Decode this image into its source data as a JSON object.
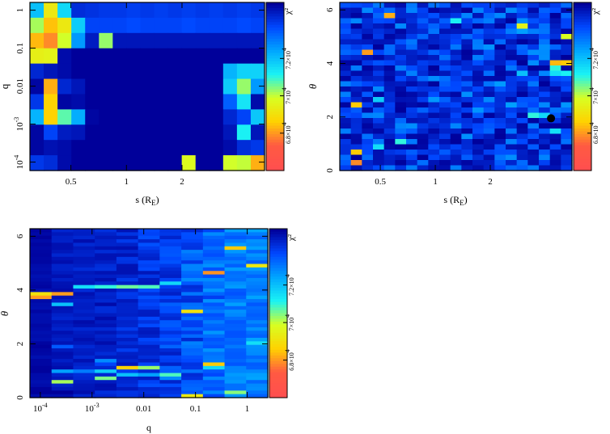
{
  "colors": {
    "background": "#ffffff",
    "axis": "#000000",
    "marker": "#000000",
    "colormap": [
      "#ff4f4f",
      "#ff5a42",
      "#ffd200",
      "#d8ff22",
      "#1bf4f4",
      "#00a6ff",
      "#0048ff",
      "#00009a"
    ]
  },
  "chart_data": [
    {
      "id": "s-q",
      "type": "heatmap",
      "title": "",
      "xlabel": "s (R_E)",
      "ylabel": "q",
      "x_scale": "log",
      "y_scale": "log",
      "xlim": [
        0.3,
        5.6
      ],
      "ylim": [
        6e-05,
        1.6
      ],
      "x_ticks": [
        {
          "value": 0.5,
          "label": "0.5"
        },
        {
          "value": 1,
          "label": "1"
        },
        {
          "value": 2,
          "label": "2"
        }
      ],
      "y_ticks": [
        {
          "value": 1,
          "label": "1"
        },
        {
          "value": 0.1,
          "label": "0.1"
        },
        {
          "value": 0.01,
          "label": "0.01"
        },
        {
          "value": 0.001,
          "label": "10^-3"
        },
        {
          "value": 0.0001,
          "label": "10^-4"
        }
      ],
      "colorbar": {
        "label": "χ²",
        "range": [
          66000,
          75000
        ],
        "ticks": [
          {
            "value": 68000,
            "label": "6.8×10^4"
          },
          {
            "value": 70000,
            "label": "7×10^4"
          },
          {
            "value": 72000,
            "label": "7.2×10^4"
          }
        ]
      },
      "grid": {
        "cols": 17,
        "rows": 11,
        "note": "chi-square values; row 0 = top (q ~ 1)",
        "values": [
          [
            72000,
            69200,
            71600,
            74200,
            74100,
            74000,
            74000,
            73900,
            74000,
            73900,
            74000,
            73900,
            74000,
            73900,
            74000,
            73900,
            74000
          ],
          [
            70200,
            68400,
            69200,
            71800,
            73800,
            73800,
            73800,
            73700,
            73800,
            73800,
            73800,
            73700,
            73800,
            73800,
            73800,
            73700,
            73800
          ],
          [
            68300,
            67800,
            69900,
            72600,
            74500,
            70300,
            74600,
            74600,
            74600,
            74600,
            74600,
            74600,
            74600,
            74600,
            74600,
            74600,
            74600
          ],
          [
            69400,
            69500,
            74800,
            75000,
            75000,
            75000,
            75000,
            75000,
            75000,
            75000,
            75000,
            75000,
            75000,
            75000,
            75000,
            75000,
            75000
          ],
          [
            74300,
            74600,
            74800,
            75000,
            75000,
            75000,
            75000,
            75000,
            75000,
            75000,
            75000,
            75000,
            75000,
            75000,
            72200,
            71700,
            71700
          ],
          [
            74900,
            68200,
            74300,
            74600,
            75000,
            75000,
            75000,
            75000,
            75000,
            75000,
            75000,
            75000,
            75000,
            75000,
            71800,
            70300,
            72600
          ],
          [
            74000,
            68600,
            74900,
            74800,
            75000,
            75000,
            75000,
            75000,
            75000,
            75000,
            75000,
            75000,
            75000,
            75000,
            73400,
            71400,
            74800
          ],
          [
            72200,
            68600,
            70700,
            72300,
            74900,
            75000,
            75000,
            75000,
            75000,
            75000,
            75000,
            75000,
            75000,
            75000,
            74300,
            73800,
            71900
          ],
          [
            74900,
            73800,
            74500,
            74600,
            75000,
            75000,
            75000,
            75000,
            75000,
            75000,
            75000,
            75000,
            75000,
            75000,
            74600,
            71200,
            74600
          ],
          [
            74900,
            74700,
            74800,
            75000,
            75000,
            75000,
            75000,
            75000,
            75000,
            75000,
            75000,
            75000,
            75000,
            75000,
            74800,
            74200,
            74000
          ],
          [
            74000,
            74200,
            74800,
            75000,
            75000,
            75000,
            75000,
            75000,
            75000,
            75000,
            75000,
            69700,
            75000,
            75000,
            69900,
            70000,
            68200
          ]
        ]
      }
    },
    {
      "id": "s-theta",
      "type": "heatmap",
      "title": "",
      "xlabel": "s (R_E)",
      "ylabel": "θ",
      "x_scale": "log",
      "y_scale": "linear",
      "xlim": [
        0.3,
        5.6
      ],
      "ylim": [
        0,
        6.28
      ],
      "x_ticks": [
        {
          "value": 0.5,
          "label": "0.5"
        },
        {
          "value": 1,
          "label": "1"
        },
        {
          "value": 2,
          "label": "2"
        }
      ],
      "y_ticks": [
        {
          "value": 0,
          "label": "0"
        },
        {
          "value": 2,
          "label": "2"
        },
        {
          "value": 4,
          "label": "4"
        },
        {
          "value": 6,
          "label": "6"
        }
      ],
      "colorbar": {
        "label": "χ²",
        "range": [
          66000,
          75000
        ],
        "ticks": [
          {
            "value": 68000,
            "label": "6.8×10^4"
          },
          {
            "value": 70000,
            "label": "7×10^4"
          },
          {
            "value": 72000,
            "label": "7.2×10^4"
          }
        ]
      },
      "best_fit_marker": {
        "s": 4.3,
        "theta": 1.95
      },
      "grid": {
        "cols": 21,
        "rows": 32,
        "generator": "noise",
        "seed": 11,
        "base_range": [
          72500,
          75000
        ],
        "hotspots": [
          {
            "col": 1,
            "row": 30,
            "value": 67800
          },
          {
            "col": 1,
            "row": 28,
            "value": 68500
          },
          {
            "col": 3,
            "row": 27,
            "value": 71500
          },
          {
            "col": 5,
            "row": 26,
            "value": 71000
          },
          {
            "col": 1,
            "row": 19,
            "value": 68500
          },
          {
            "col": 2,
            "row": 9,
            "value": 68000
          },
          {
            "col": 3,
            "row": 18,
            "value": 71800
          },
          {
            "col": 4,
            "row": 2,
            "value": 68200
          },
          {
            "col": 16,
            "row": 4,
            "value": 69500
          },
          {
            "col": 17,
            "row": 21,
            "value": 71000
          },
          {
            "col": 18,
            "row": 21,
            "value": 71600
          },
          {
            "col": 19,
            "row": 11,
            "value": 68300
          },
          {
            "col": 20,
            "row": 11,
            "value": 68500
          },
          {
            "col": 19,
            "row": 12,
            "value": 71000
          },
          {
            "col": 19,
            "row": 13,
            "value": 71500
          },
          {
            "col": 20,
            "row": 13,
            "value": 71200
          },
          {
            "col": 16,
            "row": 13,
            "value": 72000
          },
          {
            "col": 20,
            "row": 6,
            "value": 69800
          },
          {
            "col": 19,
            "row": 24,
            "value": 71500
          },
          {
            "col": 10,
            "row": 3,
            "value": 71200
          }
        ]
      }
    },
    {
      "id": "q-theta",
      "type": "heatmap",
      "title": "",
      "xlabel": "q",
      "ylabel": "θ",
      "x_scale": "log",
      "y_scale": "linear",
      "xlim": [
        6.3e-05,
        2.5
      ],
      "ylim": [
        0,
        6.28
      ],
      "x_ticks": [
        {
          "value": 0.0001,
          "label": "10^-4"
        },
        {
          "value": 0.001,
          "label": "10^-3"
        },
        {
          "value": 0.01,
          "label": "0.01"
        },
        {
          "value": 0.1,
          "label": "0.1"
        },
        {
          "value": 1,
          "label": "1"
        }
      ],
      "y_ticks": [
        {
          "value": 0,
          "label": "0"
        },
        {
          "value": 2,
          "label": "2"
        },
        {
          "value": 4,
          "label": "4"
        },
        {
          "value": 6,
          "label": "6"
        }
      ],
      "colorbar": {
        "label": "χ²",
        "range": [
          66000,
          75000
        ],
        "ticks": [
          {
            "value": 68000,
            "label": "6.8×10^4"
          },
          {
            "value": 70000,
            "label": "7×10^4"
          },
          {
            "value": 72000,
            "label": "7.2×10^4"
          }
        ]
      },
      "grid": {
        "cols": 11,
        "rows": 48,
        "generator": "column-gradient",
        "seed": 7,
        "column_base": [
          75000,
          74800,
          74800,
          74800,
          74700,
          74600,
          74500,
          74300,
          73900,
          73600,
          73500
        ],
        "column_spread": [
          300,
          500,
          600,
          700,
          800,
          1000,
          1200,
          1400,
          1300,
          1100,
          1100
        ],
        "streaks": [
          {
            "col": 0,
            "row": 18,
            "value": 69000
          },
          {
            "col": 0,
            "row": 19,
            "value": 68000
          },
          {
            "col": 1,
            "row": 18,
            "value": 68000
          },
          {
            "col": 1,
            "row": 21,
            "value": 72000
          },
          {
            "col": 1,
            "row": 43,
            "value": 70200
          },
          {
            "col": 1,
            "row": 40,
            "value": 72500
          },
          {
            "col": 1,
            "row": 33,
            "value": 73500
          },
          {
            "col": 1,
            "row": 46,
            "value": 75000
          },
          {
            "col": 2,
            "row": 16,
            "value": 71500
          },
          {
            "col": 2,
            "row": 40,
            "value": 73000
          },
          {
            "col": 3,
            "row": 16,
            "value": 71000
          },
          {
            "col": 3,
            "row": 42,
            "value": 70500
          },
          {
            "col": 3,
            "row": 40,
            "value": 71800
          },
          {
            "col": 3,
            "row": 38,
            "value": 73800
          },
          {
            "col": 3,
            "row": 37,
            "value": 72800
          },
          {
            "col": 4,
            "row": 16,
            "value": 70600
          },
          {
            "col": 4,
            "row": 39,
            "value": 68600
          },
          {
            "col": 4,
            "row": 41,
            "value": 72000
          },
          {
            "col": 5,
            "row": 16,
            "value": 70800
          },
          {
            "col": 5,
            "row": 39,
            "value": 70300
          },
          {
            "col": 5,
            "row": 41,
            "value": 72500
          },
          {
            "col": 6,
            "row": 15,
            "value": 71600
          },
          {
            "col": 6,
            "row": 41,
            "value": 70800
          },
          {
            "col": 6,
            "row": 42,
            "value": 72800
          },
          {
            "col": 7,
            "row": 23,
            "value": 69000
          },
          {
            "col": 7,
            "row": 47,
            "value": 69200
          },
          {
            "col": 7,
            "row": 14,
            "value": 72800
          },
          {
            "col": 8,
            "row": 12,
            "value": 67900
          },
          {
            "col": 8,
            "row": 38,
            "value": 68500
          },
          {
            "col": 8,
            "row": 39,
            "value": 71600
          },
          {
            "col": 9,
            "row": 5,
            "value": 68500
          },
          {
            "col": 9,
            "row": 46,
            "value": 70400
          },
          {
            "col": 10,
            "row": 10,
            "value": 69200
          },
          {
            "col": 10,
            "row": 32,
            "value": 71500
          }
        ]
      }
    }
  ]
}
